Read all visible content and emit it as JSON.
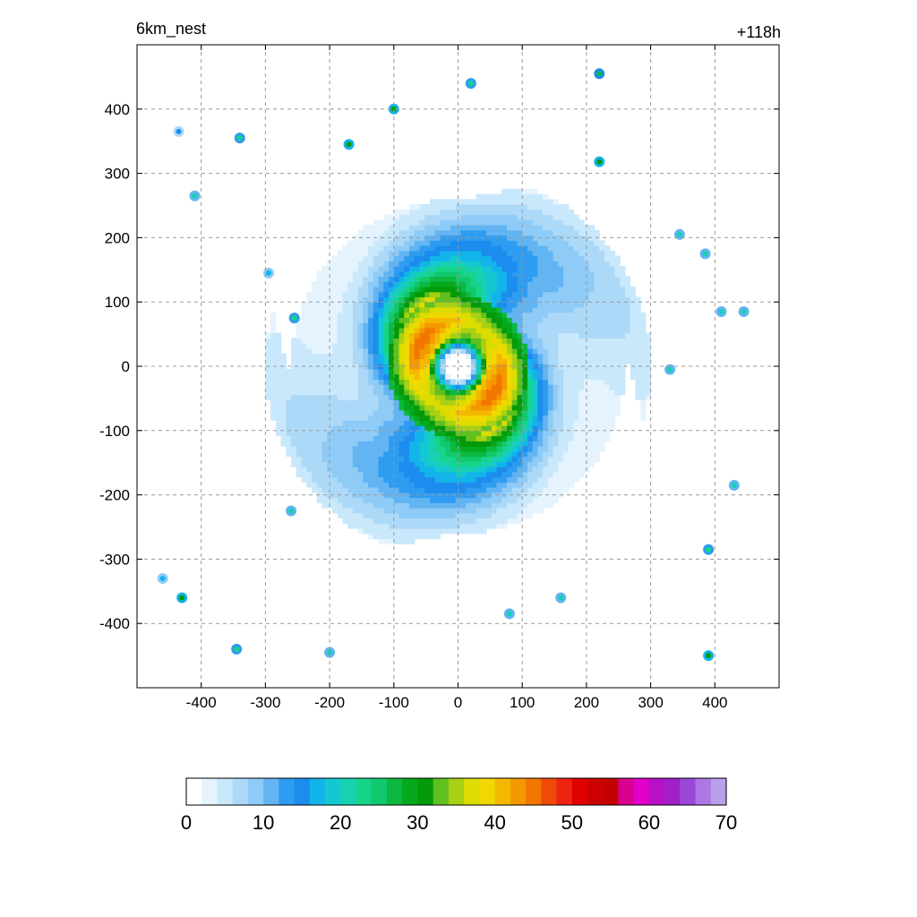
{
  "chart_data": {
    "type": "heatmap",
    "title_left": "6km_nest",
    "title_right": "+118h",
    "xlim": [
      -500,
      500
    ],
    "ylim": [
      -500,
      500
    ],
    "x_ticks": [
      -400,
      -300,
      -200,
      -100,
      0,
      100,
      200,
      300,
      400
    ],
    "y_ticks": [
      400,
      300,
      200,
      100,
      0,
      -100,
      -200,
      -300,
      -400
    ],
    "x_tick_labels": [
      "-400",
      "-300",
      "-200",
      "-100",
      "0",
      "100",
      "200",
      "300",
      "400"
    ],
    "y_tick_labels": [
      "400",
      "300",
      "200",
      "100",
      "0",
      "-100",
      "-200",
      "-300",
      "-400"
    ],
    "grid": true,
    "colorbar": {
      "min": 0,
      "max": 70,
      "step": 2,
      "tick_values": [
        0,
        10,
        20,
        30,
        40,
        50,
        60,
        70
      ],
      "tick_labels": [
        "0",
        "10",
        "20",
        "30",
        "40",
        "50",
        "60",
        "70"
      ],
      "colors": [
        "#ffffff",
        "#e4f3fd",
        "#c9e8fb",
        "#add9f8",
        "#8ecbf6",
        "#62b4f2",
        "#2e9cf0",
        "#1c8cee",
        "#12b4ea",
        "#14c8d2",
        "#18d0b2",
        "#16d48a",
        "#12c86e",
        "#0cb840",
        "#06a81c",
        "#049a08",
        "#60c020",
        "#a8d014",
        "#dcdc00",
        "#f0d800",
        "#f4b800",
        "#f49800",
        "#f27600",
        "#f04a08",
        "#ee2410",
        "#e00000",
        "#cc0000",
        "#c40000",
        "#d8008e",
        "#e000c8",
        "#b810c6",
        "#a020c8",
        "#9a48d8",
        "#ac78e4",
        "#b8a0ea"
      ]
    },
    "storm_center": [
      0,
      0
    ],
    "series": [
      {
        "values": [
          {
            "r": 20,
            "v": 0
          },
          {
            "r": 45,
            "v": 38
          },
          {
            "r": 70,
            "v": 44
          },
          {
            "r": 100,
            "v": 34
          },
          {
            "r": 130,
            "v": 24
          },
          {
            "r": 170,
            "v": 14
          },
          {
            "r": 230,
            "v": 8
          },
          {
            "r": 300,
            "v": 4
          }
        ]
      }
    ],
    "cells": [
      {
        "x": 20,
        "y": 440,
        "v": 22
      },
      {
        "x": 220,
        "y": 318,
        "v": 30
      },
      {
        "x": -100,
        "y": 400,
        "v": 30
      },
      {
        "x": -170,
        "y": 345,
        "v": 30
      },
      {
        "x": -340,
        "y": 355,
        "v": 22
      },
      {
        "x": -410,
        "y": 265,
        "v": 20
      },
      {
        "x": -435,
        "y": 365,
        "v": 14
      },
      {
        "x": 220,
        "y": 455,
        "v": 26
      },
      {
        "x": -430,
        "y": -360,
        "v": 30
      },
      {
        "x": -460,
        "y": -330,
        "v": 16
      },
      {
        "x": 390,
        "y": -450,
        "v": 30
      },
      {
        "x": 390,
        "y": -285,
        "v": 22
      },
      {
        "x": 80,
        "y": -385,
        "v": 20
      },
      {
        "x": 160,
        "y": -360,
        "v": 20
      },
      {
        "x": 445,
        "y": 85,
        "v": 20
      },
      {
        "x": 430,
        "y": -185,
        "v": 20
      },
      {
        "x": 330,
        "y": -5,
        "v": 20
      },
      {
        "x": -260,
        "y": -225,
        "v": 20
      },
      {
        "x": -200,
        "y": -445,
        "v": 20
      },
      {
        "x": -345,
        "y": -440,
        "v": 22
      },
      {
        "x": -295,
        "y": 145,
        "v": 16
      },
      {
        "x": 345,
        "y": 205,
        "v": 20
      },
      {
        "x": 385,
        "y": 175,
        "v": 20
      },
      {
        "x": -255,
        "y": 75,
        "v": 22
      },
      {
        "x": 410,
        "y": 85,
        "v": 20
      }
    ]
  }
}
